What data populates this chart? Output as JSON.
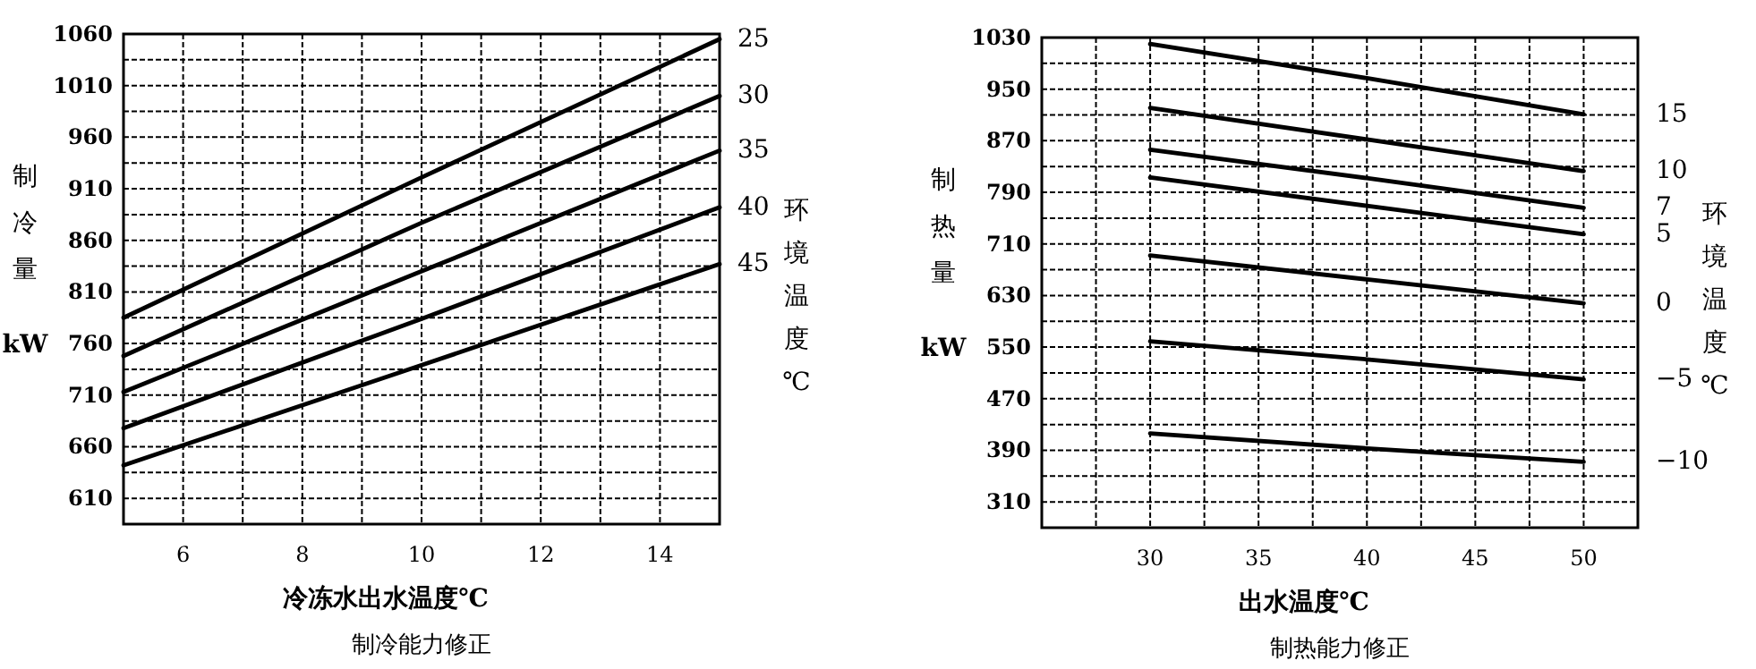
{
  "chart_data": [
    {
      "type": "line",
      "title": "制冷能力修正",
      "xlabel": "冷冻水出水温度℃",
      "ylabel": "制冷量 kW",
      "y2label": "环境温度℃",
      "x": [
        5,
        10,
        15
      ],
      "xlim": [
        5,
        15
      ],
      "xticks": [
        {
          "value": 5,
          "label": null
        },
        6,
        {
          "value": 7,
          "label": null
        },
        8,
        {
          "value": 9,
          "label": null
        },
        10,
        {
          "value": 11,
          "label": null
        },
        12,
        {
          "value": 13,
          "label": null
        },
        14,
        {
          "value": 15,
          "label": null
        }
      ],
      "ylim": [
        585,
        1060
      ],
      "yticks": [
        610,
        {
          "value": 635,
          "label": null
        },
        660,
        {
          "value": 685,
          "label": null
        },
        710,
        {
          "value": 735,
          "label": null
        },
        760,
        {
          "value": 785,
          "label": null
        },
        810,
        {
          "value": 835,
          "label": null
        },
        860,
        {
          "value": 885,
          "label": null
        },
        910,
        {
          "value": 935,
          "label": null
        },
        960,
        {
          "value": 985,
          "label": null
        },
        1010,
        {
          "value": 1035,
          "label": null
        },
        1060
      ],
      "grid": true,
      "series": [
        {
          "name": "25",
          "color": "#000000",
          "values": [
            785,
            921,
            1055
          ]
        },
        {
          "name": "30",
          "color": "#000000",
          "values": [
            748,
            877,
            1000
          ]
        },
        {
          "name": "35",
          "color": "#000000",
          "values": [
            713,
            830,
            947
          ]
        },
        {
          "name": "40",
          "color": "#000000",
          "values": [
            678,
            784,
            892
          ]
        },
        {
          "name": "45",
          "color": "#000000",
          "values": [
            642,
            739,
            837
          ]
        }
      ]
    },
    {
      "type": "line",
      "title": "制热能力修正",
      "xlabel": "出水温度℃",
      "ylabel": "制热量 kW",
      "y2label": "环境温度℃",
      "x": [
        30,
        40,
        50
      ],
      "xlim": [
        25,
        52.5
      ],
      "xticks": [
        {
          "value": 27.5,
          "label": null
        },
        30,
        {
          "value": 32.5,
          "label": null
        },
        35,
        {
          "value": 37.5,
          "label": null
        },
        40,
        {
          "value": 42.5,
          "label": null
        },
        45,
        {
          "value": 47.5,
          "label": null
        },
        50
      ],
      "ylim": [
        270,
        1030
      ],
      "yticks": [
        310,
        {
          "value": 350,
          "label": null
        },
        390,
        {
          "value": 430,
          "label": null
        },
        470,
        {
          "value": 510,
          "label": null
        },
        550,
        {
          "value": 590,
          "label": null
        },
        630,
        {
          "value": 670,
          "label": null
        },
        710,
        {
          "value": 750,
          "label": null
        },
        790,
        {
          "value": 830,
          "label": null
        },
        870,
        {
          "value": 910,
          "label": null
        },
        950,
        {
          "value": 990,
          "label": null
        },
        1030
      ],
      "grid": true,
      "series": [
        {
          "name": "15",
          "color": "#000000",
          "values": [
            1020,
            967,
            911
          ]
        },
        {
          "name": "10",
          "color": "#000000",
          "values": [
            921,
            872,
            823
          ]
        },
        {
          "name": "7",
          "color": "#000000",
          "values": [
            856,
            812,
            766
          ]
        },
        {
          "name": "5",
          "color": "#000000",
          "values": [
            813,
            769,
            725
          ]
        },
        {
          "name": "0",
          "color": "#000000",
          "values": [
            692,
            655,
            618
          ]
        },
        {
          "name": "−5",
          "color": "#000000",
          "values": [
            559,
            531,
            500
          ]
        },
        {
          "name": "−10",
          "color": "#000000",
          "values": [
            416,
            393,
            372
          ]
        }
      ]
    }
  ]
}
